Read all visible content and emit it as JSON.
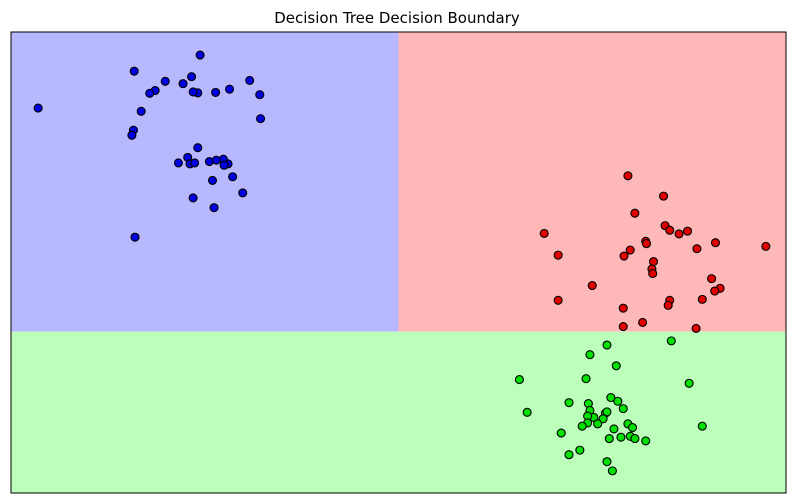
{
  "chart_data": {
    "type": "scatter",
    "title": "Decision Tree Decision Boundary",
    "xlabel": "",
    "ylabel": "",
    "xlim": [
      0,
      100
    ],
    "ylim": [
      0,
      100
    ],
    "ticks": false,
    "grid": false,
    "regions": [
      {
        "class": "blue",
        "x": [
          0,
          50
        ],
        "y": [
          35,
          100
        ],
        "color": "#b8b8ff"
      },
      {
        "class": "red",
        "x": [
          50,
          100
        ],
        "y": [
          35,
          100
        ],
        "color": "#ffb8b8"
      },
      {
        "class": "green",
        "x": [
          0,
          100
        ],
        "y": [
          0,
          35
        ],
        "color": "#bbffbb"
      }
    ],
    "series": [
      {
        "class": "blue",
        "color": "#0000e0",
        "points": [
          [
            3.5,
            83.5
          ],
          [
            15.9,
            91.5
          ],
          [
            24.4,
            95.0
          ],
          [
            18.6,
            87.3
          ],
          [
            19.9,
            89.3
          ],
          [
            17.9,
            86.7
          ],
          [
            22.2,
            88.8
          ],
          [
            23.3,
            90.3
          ],
          [
            24.1,
            86.8
          ],
          [
            23.5,
            87.0
          ],
          [
            26.4,
            86.9
          ],
          [
            28.2,
            87.6
          ],
          [
            32.1,
            86.4
          ],
          [
            30.8,
            89.5
          ],
          [
            32.2,
            81.2
          ],
          [
            16.8,
            82.8
          ],
          [
            15.8,
            78.7
          ],
          [
            15.6,
            77.6
          ],
          [
            24.1,
            74.9
          ],
          [
            22.8,
            72.8
          ],
          [
            28.0,
            71.4
          ],
          [
            27.4,
            72.4
          ],
          [
            27.5,
            71.1
          ],
          [
            23.1,
            71.4
          ],
          [
            25.6,
            71.9
          ],
          [
            26.5,
            72.2
          ],
          [
            26.0,
            67.8
          ],
          [
            29.9,
            65.1
          ],
          [
            23.5,
            64.0
          ],
          [
            26.2,
            61.9
          ],
          [
            16.0,
            55.5
          ],
          [
            23.7,
            71.6
          ],
          [
            21.6,
            71.6
          ],
          [
            28.6,
            68.6
          ]
        ]
      },
      {
        "class": "red",
        "color": "#e00000",
        "points": [
          [
            79.6,
            68.8
          ],
          [
            84.2,
            64.4
          ],
          [
            80.5,
            60.7
          ],
          [
            84.4,
            58.0
          ],
          [
            86.2,
            56.2
          ],
          [
            85.0,
            57.0
          ],
          [
            87.3,
            56.8
          ],
          [
            81.9,
            54.6
          ],
          [
            82.0,
            54.1
          ],
          [
            79.9,
            52.7
          ],
          [
            79.1,
            51.4
          ],
          [
            90.9,
            54.3
          ],
          [
            68.8,
            56.3
          ],
          [
            70.6,
            51.6
          ],
          [
            88.5,
            53.0
          ],
          [
            97.4,
            53.5
          ],
          [
            82.9,
            50.2
          ],
          [
            82.7,
            48.6
          ],
          [
            82.8,
            47.6
          ],
          [
            90.4,
            46.5
          ],
          [
            91.5,
            44.4
          ],
          [
            90.8,
            43.8
          ],
          [
            75.0,
            45.0
          ],
          [
            70.6,
            41.8
          ],
          [
            85.0,
            41.8
          ],
          [
            84.8,
            40.7
          ],
          [
            89.2,
            42.0
          ],
          [
            79.0,
            40.1
          ],
          [
            81.5,
            37.0
          ],
          [
            79.0,
            36.1
          ],
          [
            88.4,
            35.7
          ]
        ]
      },
      {
        "class": "green",
        "color": "#00e000",
        "points": [
          [
            85.2,
            33.0
          ],
          [
            76.9,
            32.1
          ],
          [
            74.7,
            30.0
          ],
          [
            78.1,
            27.6
          ],
          [
            65.6,
            24.6
          ],
          [
            74.2,
            24.8
          ],
          [
            87.5,
            23.8
          ],
          [
            78.3,
            19.9
          ],
          [
            77.4,
            20.7
          ],
          [
            74.5,
            19.4
          ],
          [
            72.0,
            19.6
          ],
          [
            74.7,
            17.9
          ],
          [
            79.0,
            18.3
          ],
          [
            76.7,
            17.3
          ],
          [
            76.9,
            17.6
          ],
          [
            66.6,
            17.5
          ],
          [
            75.2,
            16.4
          ],
          [
            74.4,
            16.7
          ],
          [
            76.4,
            16.1
          ],
          [
            75.7,
            15.0
          ],
          [
            74.4,
            15.2
          ],
          [
            79.6,
            15.0
          ],
          [
            73.7,
            14.5
          ],
          [
            77.8,
            13.9
          ],
          [
            80.2,
            14.2
          ],
          [
            89.2,
            14.5
          ],
          [
            71.0,
            13.0
          ],
          [
            78.7,
            12.1
          ],
          [
            79.9,
            12.3
          ],
          [
            80.5,
            11.8
          ],
          [
            77.2,
            11.8
          ],
          [
            81.9,
            11.3
          ],
          [
            73.4,
            9.3
          ],
          [
            72.0,
            8.3
          ],
          [
            76.9,
            6.8
          ],
          [
            77.6,
            4.8
          ]
        ]
      }
    ]
  }
}
